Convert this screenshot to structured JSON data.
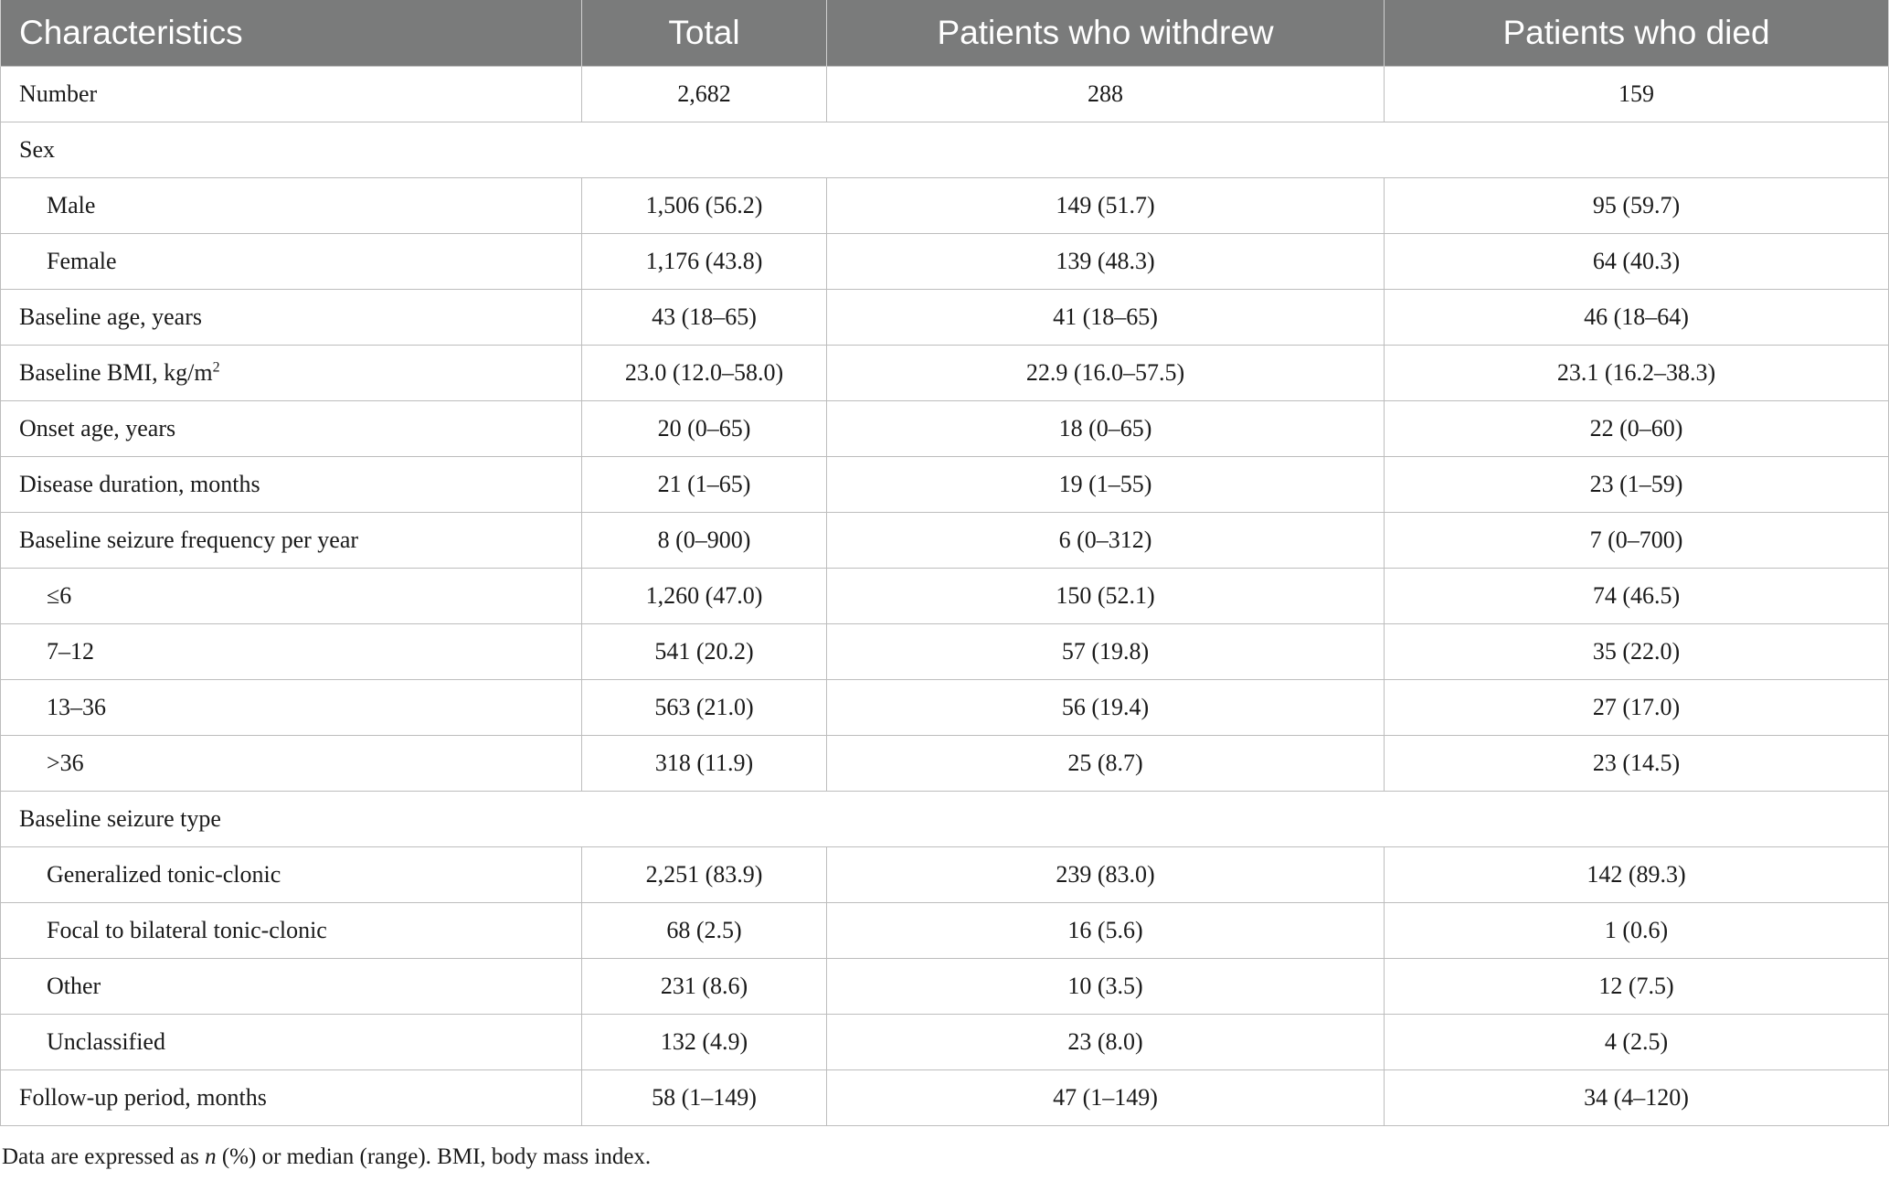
{
  "table": {
    "headers": [
      "Characteristics",
      "Total",
      "Patients who withdrew",
      "Patients who died"
    ],
    "rows": [
      {
        "label": "Number",
        "indent": false,
        "section": false,
        "values": [
          "2,682",
          "288",
          "159"
        ]
      },
      {
        "label": "Sex",
        "indent": false,
        "section": true,
        "values": []
      },
      {
        "label": "Male",
        "indent": true,
        "section": false,
        "values": [
          "1,506 (56.2)",
          "149 (51.7)",
          "95 (59.7)"
        ]
      },
      {
        "label": "Female",
        "indent": true,
        "section": false,
        "values": [
          "1,176 (43.8)",
          "139 (48.3)",
          "64 (40.3)"
        ]
      },
      {
        "label": "Baseline age, years",
        "indent": false,
        "section": false,
        "values": [
          "43 (18–65)",
          "41 (18–65)",
          "46 (18–64)"
        ]
      },
      {
        "label": "Baseline BMI, kg/m",
        "label_sup": "2",
        "indent": false,
        "section": false,
        "values": [
          "23.0 (12.0–58.0)",
          "22.9 (16.0–57.5)",
          "23.1 (16.2–38.3)"
        ]
      },
      {
        "label": "Onset age, years",
        "indent": false,
        "section": false,
        "values": [
          "20 (0–65)",
          "18 (0–65)",
          "22 (0–60)"
        ]
      },
      {
        "label": "Disease duration, months",
        "indent": false,
        "section": false,
        "values": [
          "21 (1–65)",
          "19 (1–55)",
          "23 (1–59)"
        ]
      },
      {
        "label": "Baseline seizure frequency per year",
        "indent": false,
        "section": false,
        "values": [
          "8 (0–900)",
          "6 (0–312)",
          "7 (0–700)"
        ]
      },
      {
        "label": "≤6",
        "indent": true,
        "section": false,
        "values": [
          "1,260 (47.0)",
          "150 (52.1)",
          "74 (46.5)"
        ]
      },
      {
        "label": "7–12",
        "indent": true,
        "section": false,
        "values": [
          "541 (20.2)",
          "57 (19.8)",
          "35 (22.0)"
        ]
      },
      {
        "label": "13–36",
        "indent": true,
        "section": false,
        "values": [
          "563 (21.0)",
          "56 (19.4)",
          "27 (17.0)"
        ]
      },
      {
        "label": ">36",
        "indent": true,
        "section": false,
        "values": [
          "318 (11.9)",
          "25 (8.7)",
          "23 (14.5)"
        ]
      },
      {
        "label": "Baseline seizure type",
        "indent": false,
        "section": true,
        "values": []
      },
      {
        "label": "Generalized tonic-clonic",
        "indent": true,
        "section": false,
        "values": [
          "2,251 (83.9)",
          "239 (83.0)",
          "142 (89.3)"
        ]
      },
      {
        "label": "Focal to bilateral tonic-clonic",
        "indent": true,
        "section": false,
        "values": [
          "68 (2.5)",
          "16 (5.6)",
          "1 (0.6)"
        ]
      },
      {
        "label": "Other",
        "indent": true,
        "section": false,
        "values": [
          "231 (8.6)",
          "10 (3.5)",
          "12 (7.5)"
        ]
      },
      {
        "label": "Unclassified",
        "indent": true,
        "section": false,
        "values": [
          "132 (4.9)",
          "23 (8.0)",
          "4 (2.5)"
        ]
      },
      {
        "label": "Follow-up period, months",
        "indent": false,
        "section": false,
        "values": [
          "58 (1–149)",
          "47 (1–149)",
          "34 (4–120)"
        ]
      }
    ]
  },
  "footnote": {
    "prefix": "Data are expressed as ",
    "italic": "n",
    "suffix": " (%) or median (range). BMI, body mass index."
  },
  "colors": {
    "header_bg": "#7a7b7b",
    "header_text": "#ffffff",
    "border": "#bdbdbd"
  }
}
